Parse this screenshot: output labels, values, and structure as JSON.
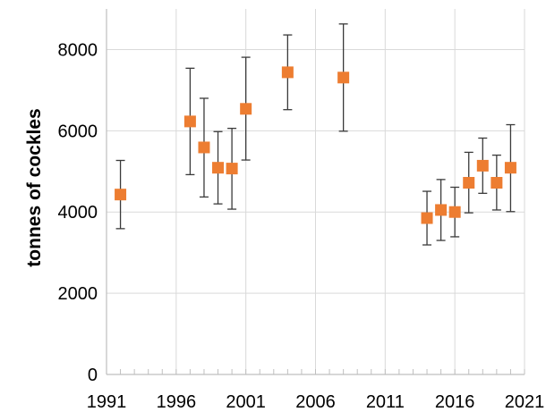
{
  "chart_data": {
    "type": "scatter",
    "title": "",
    "xlabel": "",
    "ylabel": "tonnes of cockles",
    "xlim": [
      1991,
      2021
    ],
    "ylim": [
      0,
      9000
    ],
    "xticks": [
      1991,
      1996,
      2001,
      2006,
      2011,
      2016,
      2021
    ],
    "yticks": [
      0,
      2000,
      4000,
      6000,
      8000
    ],
    "x_minor_step": 1,
    "grid": "vertical and horizontal major gridlines",
    "marker": "square",
    "colors": {
      "marker": "#ED7D31",
      "errorbar": "#3a3a3a",
      "grid": "#d9d9d9",
      "axis": "#bfbfbf"
    },
    "series": [
      {
        "points": [
          {
            "x": 1992,
            "y": 4430,
            "low": 3590,
            "high": 5270
          },
          {
            "x": 1997,
            "y": 6230,
            "low": 4920,
            "high": 7540
          },
          {
            "x": 1998,
            "y": 5590,
            "low": 4370,
            "high": 6800
          },
          {
            "x": 1999,
            "y": 5090,
            "low": 4200,
            "high": 5980
          },
          {
            "x": 2000,
            "y": 5070,
            "low": 4070,
            "high": 6060
          },
          {
            "x": 2001,
            "y": 6540,
            "low": 5280,
            "high": 7810
          },
          {
            "x": 2004,
            "y": 7440,
            "low": 6520,
            "high": 8360
          },
          {
            "x": 2008,
            "y": 7310,
            "low": 5990,
            "high": 8630
          },
          {
            "x": 2014,
            "y": 3850,
            "low": 3190,
            "high": 4510
          },
          {
            "x": 2015,
            "y": 4050,
            "low": 3300,
            "high": 4800
          },
          {
            "x": 2016,
            "y": 4000,
            "low": 3390,
            "high": 4610
          },
          {
            "x": 2017,
            "y": 4720,
            "low": 3980,
            "high": 5470
          },
          {
            "x": 2018,
            "y": 5140,
            "low": 4460,
            "high": 5820
          },
          {
            "x": 2019,
            "y": 4720,
            "low": 4050,
            "high": 5400
          },
          {
            "x": 2020,
            "y": 5090,
            "low": 4010,
            "high": 6150
          }
        ]
      }
    ]
  }
}
